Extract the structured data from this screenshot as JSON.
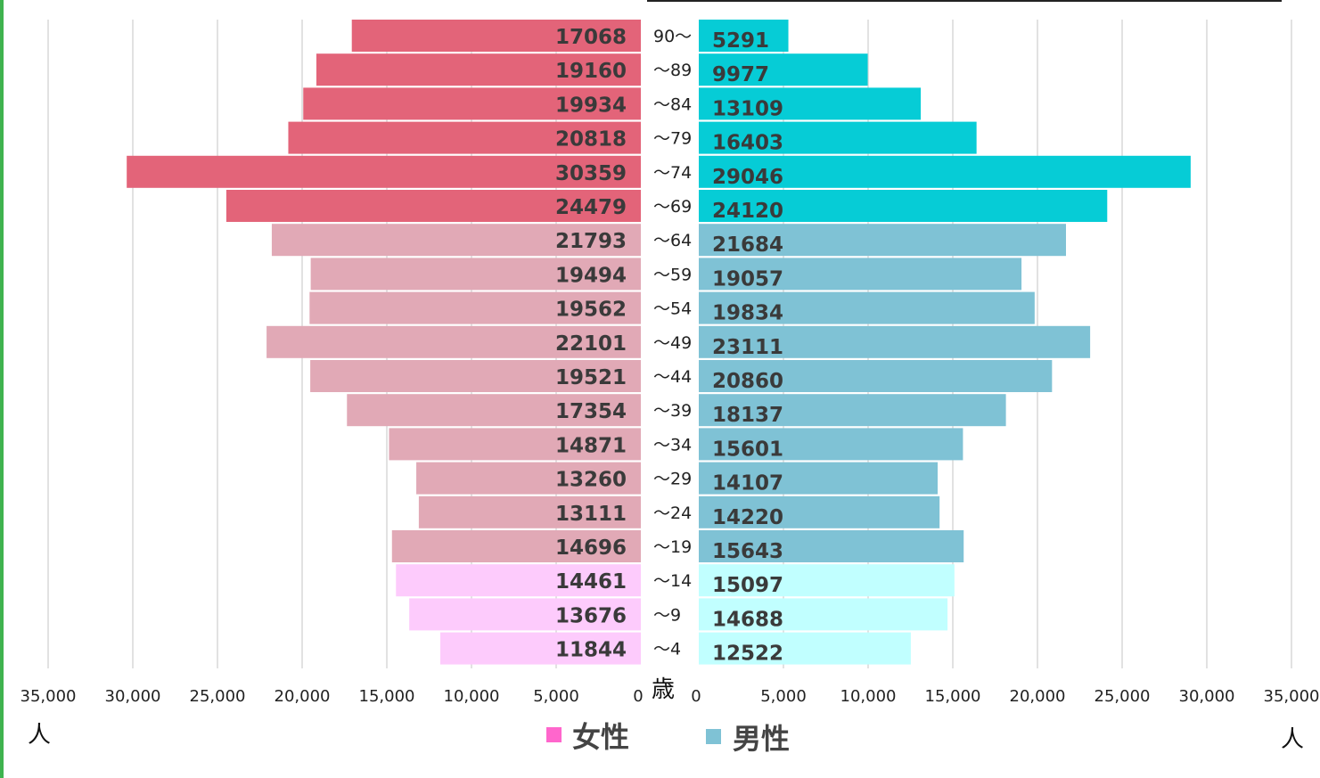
{
  "chart_data": {
    "type": "bar",
    "orientation": "horizontal",
    "layout": "population-pyramid",
    "age_unit_label": "歳",
    "value_unit_label": "人",
    "categories": [
      "90〜",
      "〜89",
      "〜84",
      "〜79",
      "〜74",
      "〜69",
      "〜64",
      "〜59",
      "〜54",
      "〜49",
      "〜44",
      "〜39",
      "〜34",
      "〜29",
      "〜24",
      "〜19",
      "〜14",
      "〜9",
      "〜4"
    ],
    "series": [
      {
        "name": "女性",
        "side": "left",
        "legend_color": "#ff66cc",
        "values": [
          17068,
          19160,
          19934,
          20818,
          30359,
          24479,
          21793,
          19494,
          19562,
          22101,
          19521,
          17354,
          14871,
          13260,
          13111,
          14696,
          14461,
          13676,
          11844
        ],
        "colors": [
          "#e36479",
          "#e36479",
          "#e36479",
          "#e36479",
          "#e36479",
          "#e36479",
          "#e1a9b6",
          "#e1a9b6",
          "#e1a9b6",
          "#e1a9b6",
          "#e1a9b6",
          "#e1a9b6",
          "#e1a9b6",
          "#e1a9b6",
          "#e1a9b6",
          "#e1a9b6",
          "#fdcbfc",
          "#fdcbfc",
          "#fdcbfc"
        ]
      },
      {
        "name": "男性",
        "side": "right",
        "legend_color": "#7fc2d5",
        "values": [
          5291,
          9977,
          13109,
          16403,
          29046,
          24120,
          21684,
          19057,
          19834,
          23111,
          20860,
          18137,
          15601,
          14107,
          14220,
          15643,
          15097,
          14688,
          12522
        ],
        "colors": [
          "#06ccd6",
          "#06ccd6",
          "#06ccd6",
          "#06ccd6",
          "#06ccd6",
          "#06ccd6",
          "#7fc2d5",
          "#7fc2d5",
          "#7fc2d5",
          "#7fc2d5",
          "#7fc2d5",
          "#7fc2d5",
          "#7fc2d5",
          "#7fc2d5",
          "#7fc2d5",
          "#7fc2d5",
          "#c1ffff",
          "#c1ffff",
          "#c1ffff"
        ]
      }
    ],
    "x_ticks": [
      0,
      5000,
      10000,
      15000,
      20000,
      25000,
      30000,
      35000
    ],
    "x_tick_labels": [
      "0",
      "5,000",
      "10,000",
      "15,000",
      "20,000",
      "25,000",
      "30,000",
      "35,000"
    ],
    "xlim": [
      0,
      35000
    ],
    "grid": true,
    "legend_position": "bottom-center"
  }
}
